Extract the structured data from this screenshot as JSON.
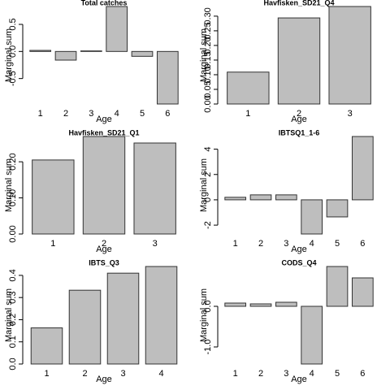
{
  "chart_data": [
    {
      "type": "bar",
      "title": "Total catches",
      "xlabel": "Age",
      "ylabel": "Marginal sum",
      "color": "#bebebe",
      "categories": [
        "1",
        "2",
        "3",
        "4",
        "5",
        "6"
      ],
      "values": [
        0.02,
        -0.16,
        0.01,
        0.83,
        -0.09,
        -0.97
      ],
      "ylim": [
        -0.97,
        0.83
      ],
      "yticks": [
        {
          "value": -0.5,
          "label": "-0.5"
        },
        {
          "value": 0,
          "label": "0.0"
        },
        {
          "value": 0.5,
          "label": "0.5"
        }
      ]
    },
    {
      "type": "bar",
      "title": "Havfisken_SD21_Q4",
      "xlabel": "Age",
      "ylabel": "Marginal sum",
      "color": "#bebebe",
      "categories": [
        "1",
        "2",
        "3"
      ],
      "values": [
        0.109,
        0.294,
        0.333
      ],
      "ylim": [
        0,
        0.333
      ],
      "yticks": [
        {
          "value": 0,
          "label": "0.00"
        },
        {
          "value": 0.05,
          "label": "0.05"
        },
        {
          "value": 0.1,
          "label": "0.10"
        },
        {
          "value": 0.15,
          "label": "0.15"
        },
        {
          "value": 0.2,
          "label": "0.20"
        },
        {
          "value": 0.25,
          "label": "0.25"
        },
        {
          "value": 0.3,
          "label": "0.30"
        }
      ]
    },
    {
      "type": "bar",
      "title": "Havfisken_SD21_Q1",
      "xlabel": "Age",
      "ylabel": "Marginal sum",
      "color": "#bebebe",
      "categories": [
        "1",
        "2",
        "3"
      ],
      "values": [
        0.205,
        0.27,
        0.252
      ],
      "ylim": [
        0,
        0.27
      ],
      "yticks": [
        {
          "value": 0,
          "label": "0.00"
        },
        {
          "value": 0.1,
          "label": "0.10"
        },
        {
          "value": 0.2,
          "label": "0.20"
        }
      ]
    },
    {
      "type": "bar",
      "title": "IBTSQ1_1-6",
      "xlabel": "Age",
      "ylabel": "Marginal sum",
      "color": "#bebebe",
      "categories": [
        "1",
        "2",
        "3",
        "4",
        "5",
        "6"
      ],
      "values": [
        0.2,
        0.39,
        0.39,
        -2.7,
        -1.35,
        5.0
      ],
      "ylim": [
        -2.7,
        5.0
      ],
      "yticks": [
        -2,
        0,
        2,
        4
      ]
    },
    {
      "type": "bar",
      "title": "IBTS_Q3",
      "xlabel": "Age",
      "ylabel": "Marginal sum",
      "color": "#bebebe",
      "categories": [
        "1",
        "2",
        "3",
        "4"
      ],
      "values": [
        0.163,
        0.333,
        0.41,
        0.44
      ],
      "ylim": [
        0,
        0.44
      ],
      "yticks": [
        {
          "value": 0,
          "label": "0.0"
        },
        {
          "value": 0.1,
          "label": "0.1"
        },
        {
          "value": 0.2,
          "label": "0.2"
        },
        {
          "value": 0.3,
          "label": "0.3"
        },
        {
          "value": 0.4,
          "label": "0.4"
        }
      ]
    },
    {
      "type": "bar",
      "title": "CODS_Q4",
      "xlabel": "Age",
      "ylabel": "Marginal sum",
      "color": "#bebebe",
      "categories": [
        "1",
        "2",
        "3",
        "4",
        "5",
        "6"
      ],
      "values": [
        0.08,
        0.06,
        0.1,
        -1.42,
        0.98,
        0.7
      ],
      "ylim": [
        -1.42,
        0.98
      ],
      "yticks": [
        {
          "value": -1,
          "label": "-1.0"
        },
        {
          "value": 0,
          "label": "0.0"
        }
      ]
    }
  ]
}
